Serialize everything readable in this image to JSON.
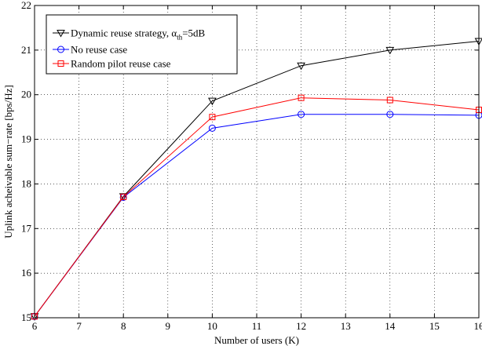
{
  "chart_data": {
    "type": "line",
    "title": "",
    "xlabel": "Number of users (K)",
    "ylabel": "Uplink acheivable sum−rate [bps/Hz]",
    "xlim": [
      6,
      16
    ],
    "ylim": [
      15,
      22
    ],
    "xticks": [
      "6",
      "7",
      "8",
      "9",
      "10",
      "11",
      "12",
      "13",
      "14",
      "15",
      "16"
    ],
    "yticks": [
      "15",
      "16",
      "17",
      "18",
      "19",
      "20",
      "21",
      "22"
    ],
    "grid": true,
    "legend_position": "top-left",
    "x": [
      6,
      8,
      10,
      12,
      14,
      16
    ],
    "series": [
      {
        "name": "Dynamic reuse strategy, αth=5dB",
        "label_main": "Dynamic reuse strategy, ",
        "label_symbol": "α",
        "label_sub": "th",
        "label_tail": "=5dB",
        "values": [
          15.03,
          17.72,
          19.86,
          20.65,
          21.0,
          21.2
        ],
        "color": "#000000",
        "marker": "triangle-down"
      },
      {
        "name": "No reuse case",
        "values": [
          15.03,
          17.7,
          19.25,
          19.56,
          19.56,
          19.54
        ],
        "color": "#0000ff",
        "marker": "circle"
      },
      {
        "name": "Random pilot reuse case",
        "values": [
          15.03,
          17.71,
          19.5,
          19.93,
          19.88,
          19.66
        ],
        "color": "#ff0000",
        "marker": "square"
      }
    ]
  }
}
